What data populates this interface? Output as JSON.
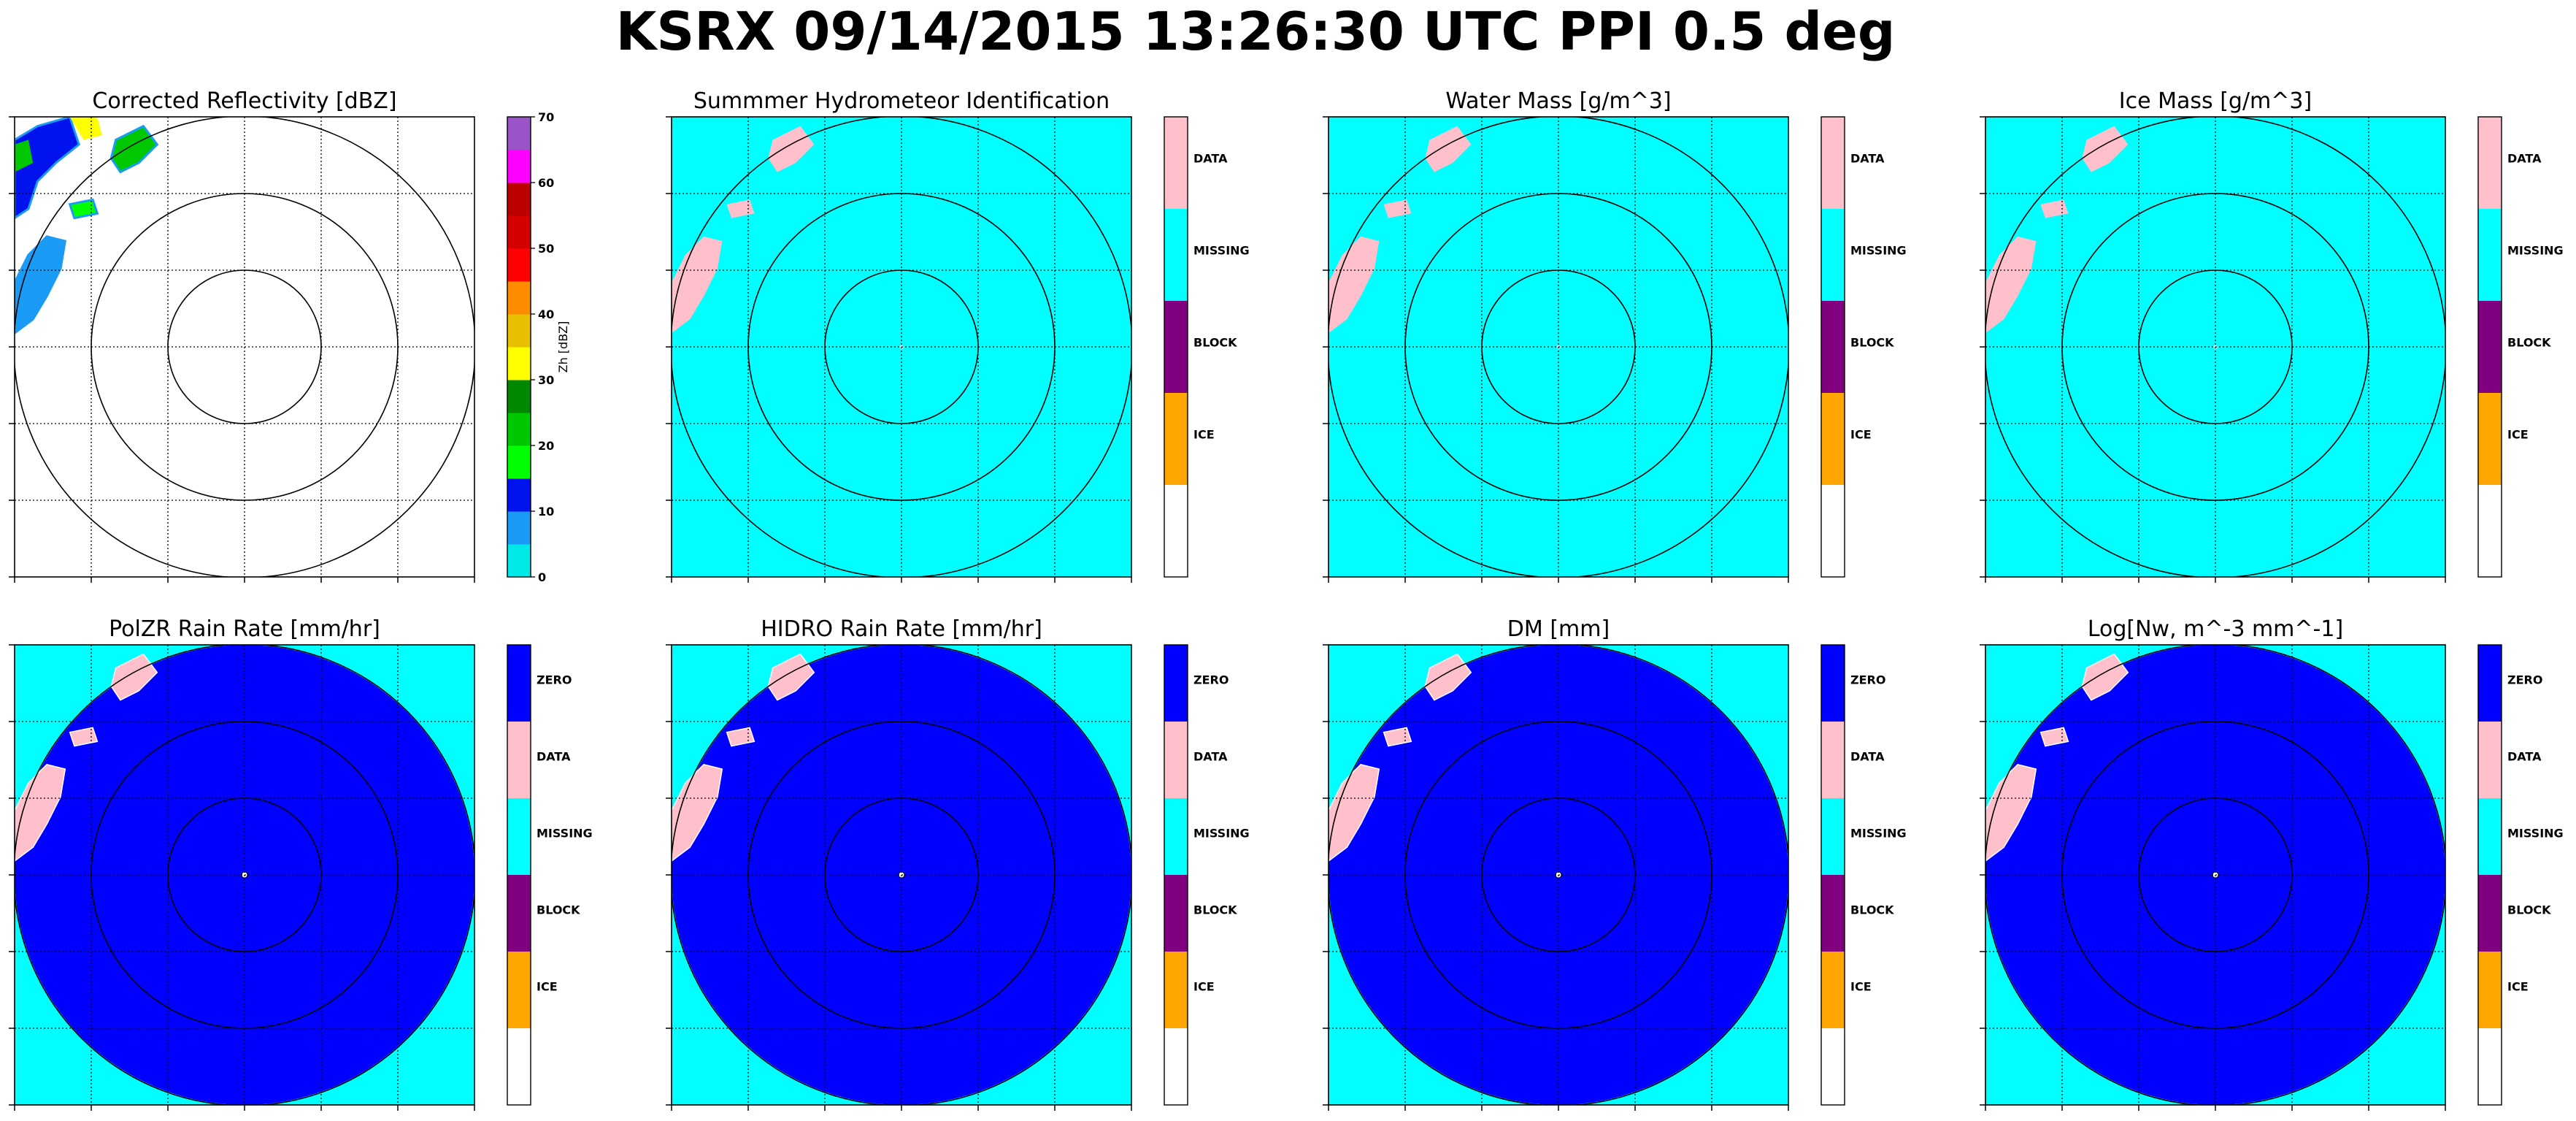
{
  "figure": {
    "title": "KSRX 09/14/2015 13:26:30 UTC PPI 0.5 deg"
  },
  "colors": {
    "reflectivity_scale": [
      "#00e8e8",
      "#1a9bf5",
      "#0012ee",
      "#00ff00",
      "#00c800",
      "#008800",
      "#ffff00",
      "#e8c000",
      "#ff8c00",
      "#ff0000",
      "#d40000",
      "#bb0000",
      "#ff00ff",
      "#9955c8"
    ],
    "categories": {
      "ZERO": "#0000ff",
      "DATA": "#ffc0cb",
      "MISSING": "#00ffff",
      "BLOCK": "#800080",
      "ICE": "#ffa500",
      "BLANK": "#ffffff"
    }
  },
  "chart_data": [
    {
      "type": "heatmap",
      "title": "Corrected Reflectivity [dBZ]",
      "colorbar": {
        "label": "Zh [dBZ]",
        "ticks": [
          "0",
          "10",
          "20",
          "30",
          "40",
          "50",
          "60",
          "70"
        ],
        "range": [
          0,
          70
        ]
      },
      "range_rings": 3,
      "grid": true,
      "echo_location": "top-left"
    },
    {
      "type": "heatmap",
      "title": "Summmer Hydrometeor Identification",
      "colorbar": {
        "categories": [
          "DATA",
          "MISSING",
          "BLOCK",
          "ICE"
        ]
      },
      "background": "MISSING",
      "echo": "DATA",
      "range_rings": 3,
      "grid": true
    },
    {
      "type": "heatmap",
      "title": "Water Mass [g/m^3]",
      "colorbar": {
        "categories": [
          "DATA",
          "MISSING",
          "BLOCK",
          "ICE"
        ]
      },
      "background": "MISSING",
      "echo": "DATA",
      "range_rings": 3,
      "grid": true
    },
    {
      "type": "heatmap",
      "title": "Ice Mass [g/m^3]",
      "colorbar": {
        "categories": [
          "DATA",
          "MISSING",
          "BLOCK",
          "ICE"
        ]
      },
      "background": "MISSING",
      "echo": "DATA",
      "range_rings": 3,
      "grid": true
    },
    {
      "type": "heatmap",
      "title": "PolZR Rain Rate [mm/hr]",
      "colorbar": {
        "categories": [
          "ZERO",
          "DATA",
          "MISSING",
          "BLOCK",
          "ICE"
        ]
      },
      "background": "MISSING",
      "disk": "ZERO",
      "echo": "DATA",
      "range_rings": 3,
      "grid": true
    },
    {
      "type": "heatmap",
      "title": "HIDRO Rain Rate [mm/hr]",
      "colorbar": {
        "categories": [
          "ZERO",
          "DATA",
          "MISSING",
          "BLOCK",
          "ICE"
        ]
      },
      "background": "MISSING",
      "disk": "ZERO",
      "echo": "DATA",
      "range_rings": 3,
      "grid": true
    },
    {
      "type": "heatmap",
      "title": "DM [mm]",
      "colorbar": {
        "categories": [
          "ZERO",
          "DATA",
          "MISSING",
          "BLOCK",
          "ICE"
        ]
      },
      "background": "MISSING",
      "disk": "ZERO",
      "echo": "DATA",
      "range_rings": 3,
      "grid": true
    },
    {
      "type": "heatmap",
      "title": "Log[Nw, m^-3 mm^-1]",
      "colorbar": {
        "categories": [
          "ZERO",
          "DATA",
          "MISSING",
          "BLOCK",
          "ICE"
        ]
      },
      "background": "MISSING",
      "disk": "ZERO",
      "echo": "DATA",
      "range_rings": 3,
      "grid": true
    }
  ]
}
